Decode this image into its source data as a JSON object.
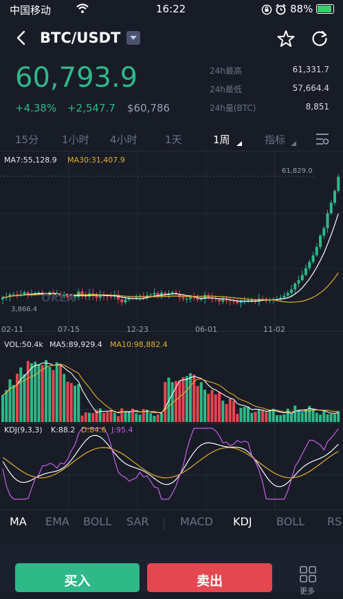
{
  "status_bar": {
    "carrier": "中国移动",
    "time": "16:22",
    "battery": "88%"
  },
  "header": {
    "pair": "BTC/USDT"
  },
  "ticker": {
    "price": "60,793.9",
    "change_pct": "+4.38%",
    "change_abs": "+2,547.7",
    "price_cny": "$60,786",
    "stats": [
      {
        "label": "24h最高",
        "value": "61,331.7"
      },
      {
        "label": "24h最低",
        "value": "57,664.4"
      },
      {
        "label": "24h量(BTC)",
        "value": "8,851"
      }
    ]
  },
  "timeframes": [
    "15分",
    "1小时",
    "4小时",
    "1天",
    "1周",
    "指标"
  ],
  "active_timeframe": "1周",
  "main_chart": {
    "ma7_label": "MA7:55,128.9",
    "ma30_label": "MA30:31,407.9",
    "high_marker": "61,829.0",
    "low_marker": "3,866.4",
    "watermark": "OKEX",
    "x_labels": [
      "02-11",
      "07-15",
      "12-23",
      "06-01",
      "11-02"
    ]
  },
  "volume_chart": {
    "vol_label": "VOL:50.4k",
    "ma5_label": "MA5:89,929.4",
    "ma10_label": "MA10:98,882.4"
  },
  "kdj_chart": {
    "title": "KDJ(9,3,3)",
    "k_label": "K:88.2",
    "d_label": "D:84.6",
    "j_label": "J:95.4"
  },
  "indicator_tabs": [
    "MA",
    "EMA",
    "BOLL",
    "SAR",
    "MACD",
    "KDJ",
    "BOLL",
    "RS"
  ],
  "actions": {
    "buy": "买入",
    "sell": "卖出",
    "more": "更多"
  },
  "colors": {
    "up": "#2fb888",
    "down": "#e4474f",
    "bg": "#181c27",
    "ma7": "#ffffff",
    "ma30": "#e5b02e",
    "j": "#c860e8"
  }
}
